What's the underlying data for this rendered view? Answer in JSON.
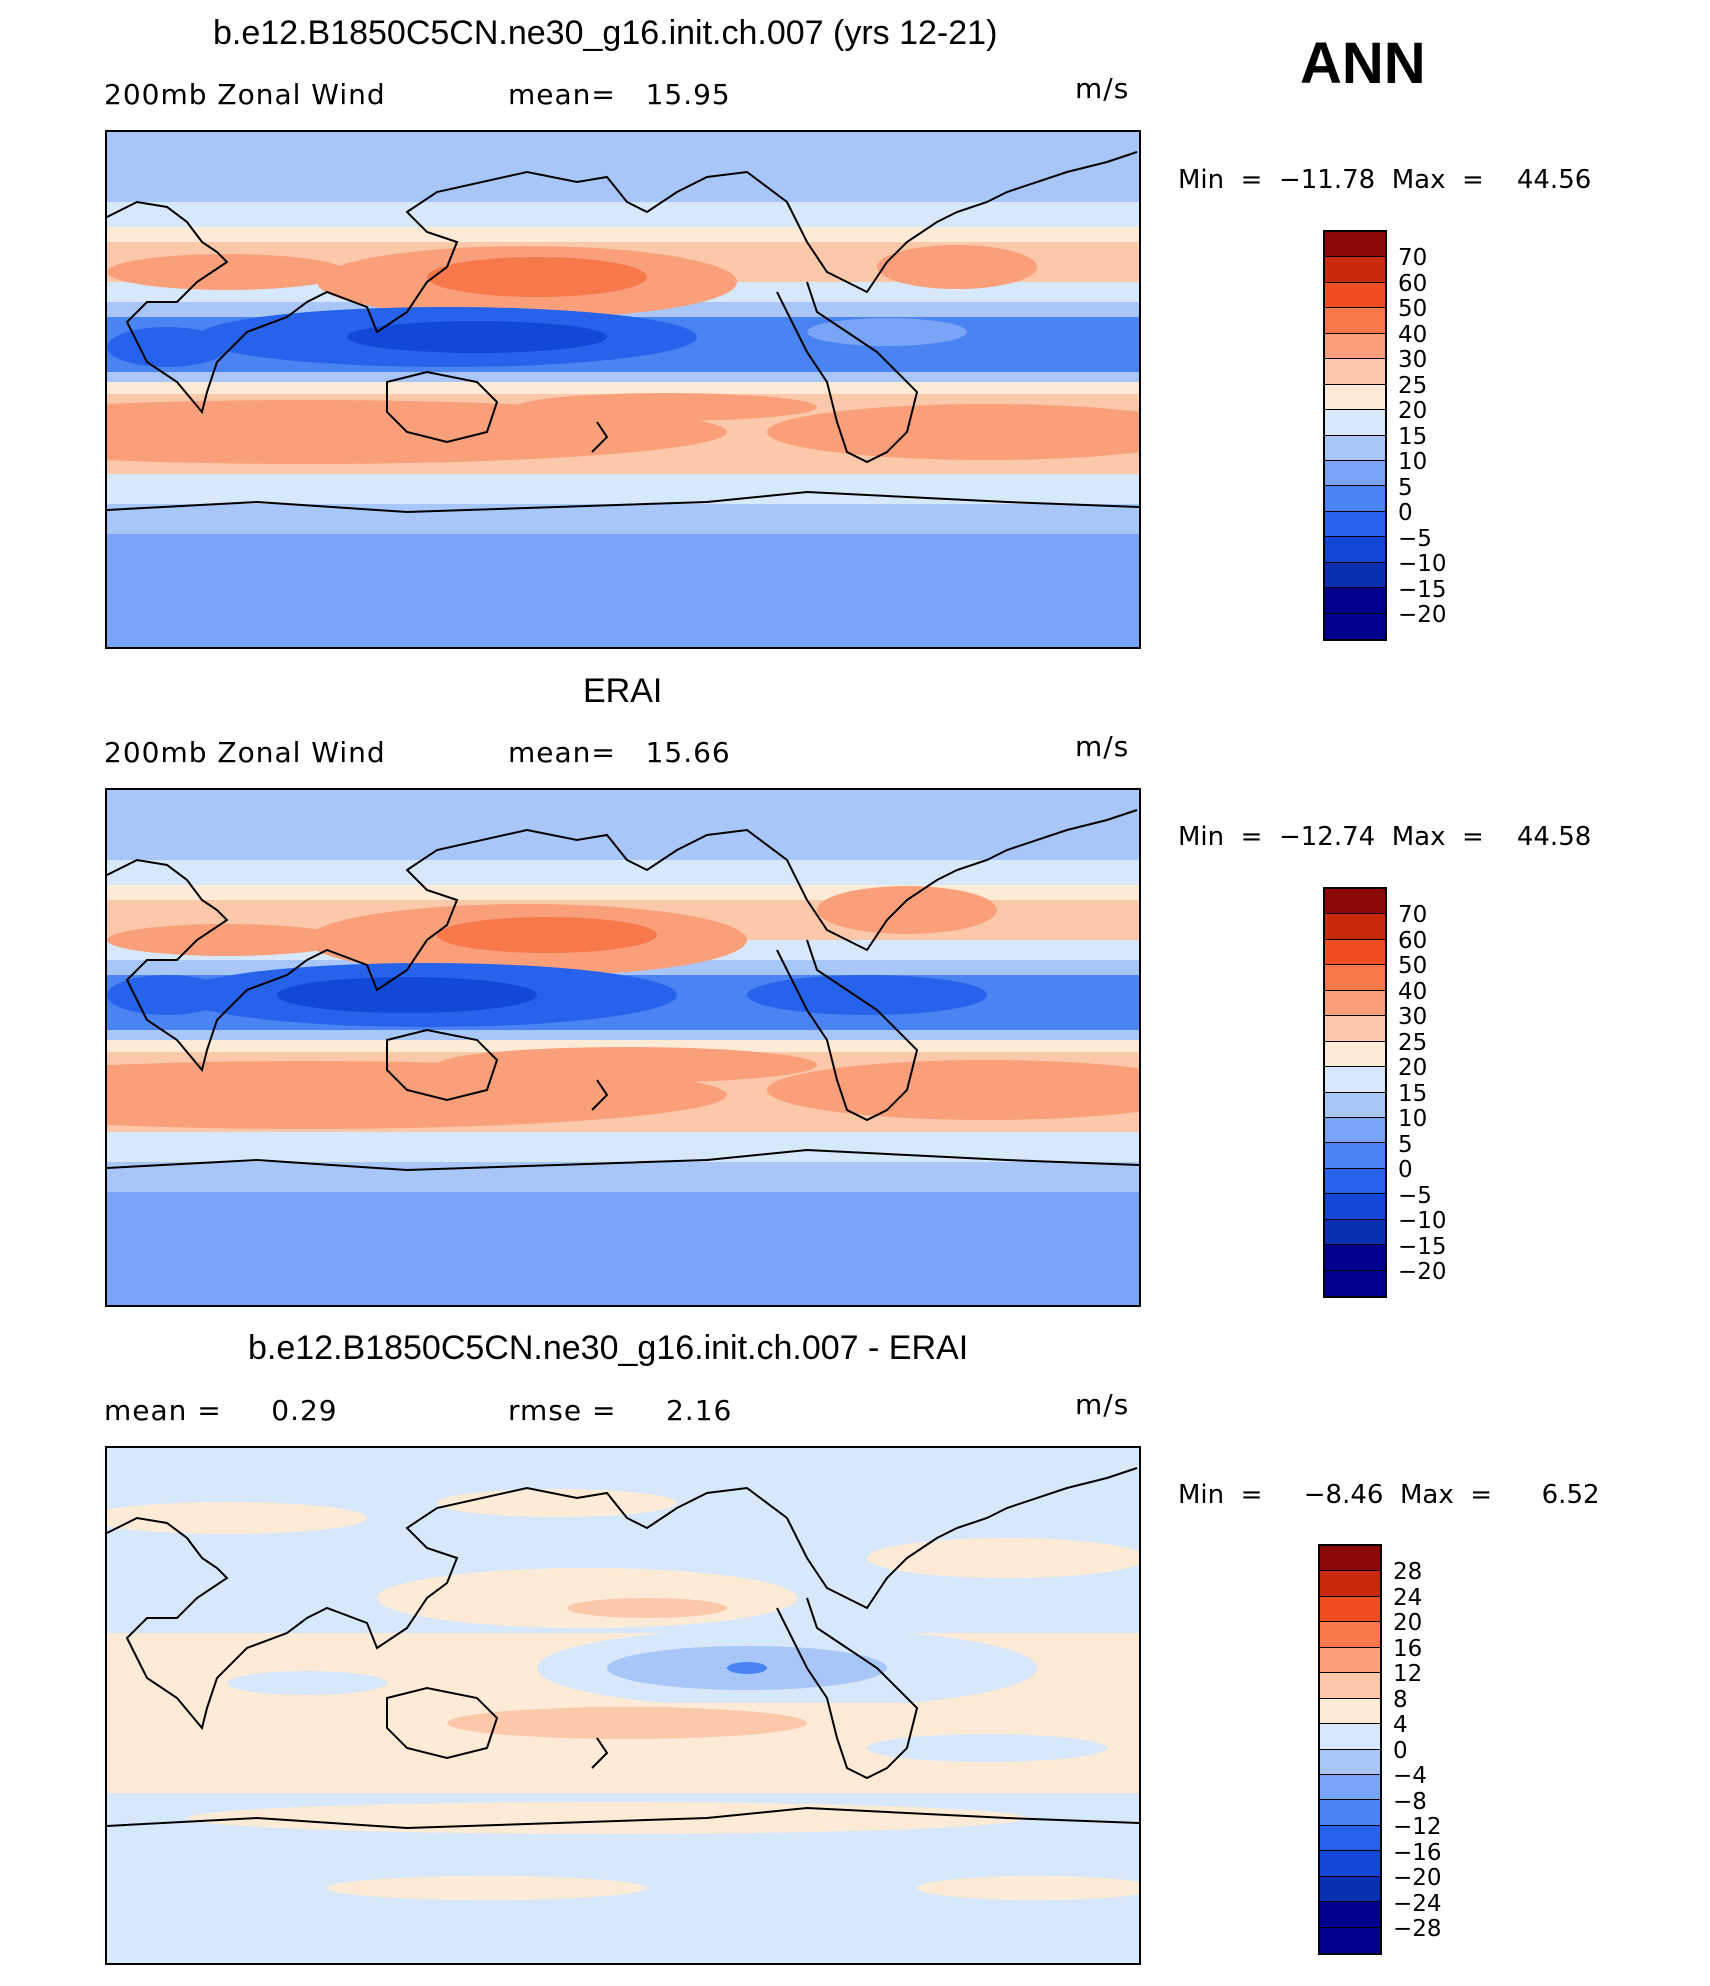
{
  "season": "ANN",
  "colors": {
    "main_scale": [
      "#00008c",
      "#0a2fb0",
      "#1248d8",
      "#2762ea",
      "#4a83f2",
      "#7aa4f5",
      "#a9c6f8",
      "#d6e8fa",
      "#fdebd8",
      "#fcc8aa",
      "#f9a07a",
      "#f6784b",
      "#ee4e22",
      "#c82a0a",
      "#8c0a05"
    ],
    "diff_scale": [
      "#00008c",
      "#0a2fb0",
      "#1248d8",
      "#2762ea",
      "#4a83f2",
      "#7aa4f5",
      "#a9c6f8",
      "#d6e8fa",
      "#fdebd8",
      "#fcc8aa",
      "#f9a07a",
      "#f6784b",
      "#ee4e22",
      "#c82a0a",
      "#8c0a05"
    ]
  },
  "panels": [
    {
      "title": "b.e12.B1850C5CN.ne30_g16.init.ch.007 (yrs 12-21)",
      "left_label": "200mb Zonal Wind",
      "center_label": "mean=   15.95",
      "units": "m/s",
      "minmax": "Min  =  −11.78  Max  =    44.56",
      "colorbar_labels": [
        "70",
        "60",
        "50",
        "40",
        "30",
        "25",
        "20",
        "15",
        "10",
        "5",
        "0",
        "−5",
        "−10",
        "−15",
        "−20"
      ]
    },
    {
      "title": "ERAI",
      "left_label": "200mb Zonal Wind",
      "center_label": "mean=   15.66",
      "units": "m/s",
      "minmax": "Min  =  −12.74  Max  =    44.58",
      "colorbar_labels": [
        "70",
        "60",
        "50",
        "40",
        "30",
        "25",
        "20",
        "15",
        "10",
        "5",
        "0",
        "−5",
        "−10",
        "−15",
        "−20"
      ]
    },
    {
      "title": "b.e12.B1850C5CN.ne30_g16.init.ch.007 - ERAI",
      "left_label": "mean =     0.29",
      "center_label": "rmse =     2.16",
      "units": "m/s",
      "minmax": "Min  =     −8.46  Max  =      6.52",
      "colorbar_labels": [
        "28",
        "24",
        "20",
        "16",
        "12",
        "8",
        "4",
        "0",
        "−4",
        "−8",
        "−12",
        "−16",
        "−20",
        "−24",
        "−28"
      ]
    }
  ]
}
